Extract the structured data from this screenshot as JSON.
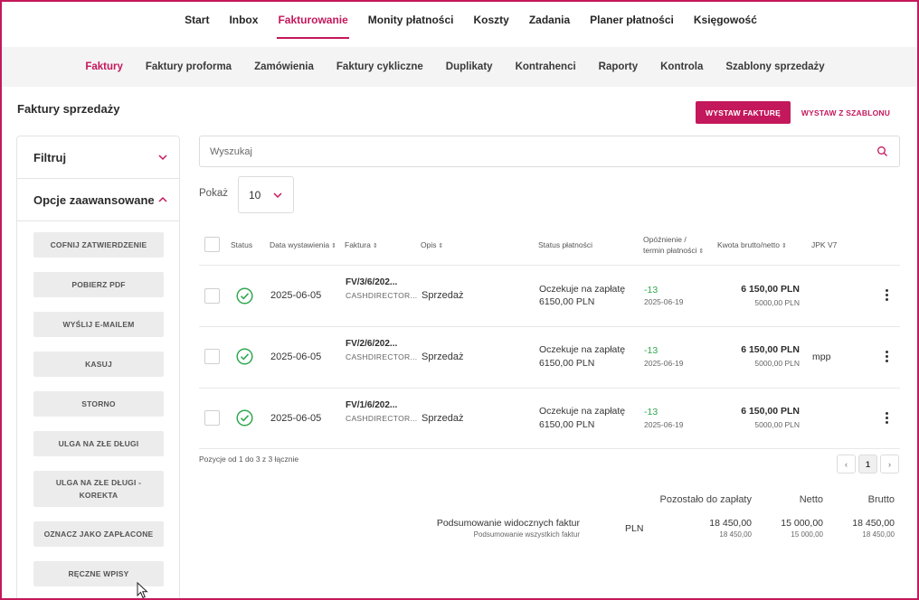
{
  "top_nav": {
    "items": [
      "Start",
      "Inbox",
      "Fakturowanie",
      "Monity płatności",
      "Koszty",
      "Zadania",
      "Planer płatności",
      "Księgowość"
    ],
    "active_index": 2
  },
  "sub_nav": {
    "items": [
      "Faktury",
      "Faktury proforma",
      "Zamówienia",
      "Faktury cykliczne",
      "Duplikaty",
      "Kontrahenci",
      "Raporty",
      "Kontrola",
      "Szablony sprzedaży"
    ],
    "active_index": 0
  },
  "page": {
    "title": "Faktury sprzedaży",
    "primary_button": "WYSTAW FAKTURĘ",
    "secondary_button": "WYSTAW Z SZABLONU"
  },
  "sidebar": {
    "filter_label": "Filtruj",
    "advanced_label": "Opcje zaawansowane",
    "actions": [
      "COFNIJ ZATWIERDZENIE",
      "POBIERZ PDF",
      "WYŚLIJ E-MAILEM",
      "KASUJ",
      "STORNO",
      "ULGA NA ZŁE DŁUGI",
      "ULGA NA ZŁE DŁUGI - KOREKTA",
      "OZNACZ JAKO ZAPŁACONE",
      "RĘCZNE WPISY"
    ]
  },
  "search": {
    "placeholder": "Wyszukaj"
  },
  "page_size": {
    "label": "Pokaż",
    "value": "10"
  },
  "table": {
    "headers": {
      "status": "Status",
      "date": "Data wystawienia",
      "invoice": "Faktura",
      "desc": "Opis",
      "payment_status": "Status płatności",
      "delay_line1": "Opóźnienie /",
      "delay_line2": "termin płatności",
      "amount": "Kwota brutto/netto",
      "jpk": "JPK V7"
    },
    "rows": [
      {
        "date": "2025-06-05",
        "invoice": "FV/3/6/202...",
        "invoice_sub": "CASHDIRECTOR...",
        "desc": "Sprzedaż",
        "status_line1": "Oczekuje na zapłatę",
        "status_line2": "6150,00 PLN",
        "delay": "-13",
        "due": "2025-06-19",
        "gross": "6 150,00 PLN",
        "net": "5000,00 PLN",
        "jpk": ""
      },
      {
        "date": "2025-06-05",
        "invoice": "FV/2/6/202...",
        "invoice_sub": "CASHDIRECTOR...",
        "desc": "Sprzedaż",
        "status_line1": "Oczekuje na zapłatę",
        "status_line2": "6150,00 PLN",
        "delay": "-13",
        "due": "2025-06-19",
        "gross": "6 150,00 PLN",
        "net": "5000,00 PLN",
        "jpk": "mpp"
      },
      {
        "date": "2025-06-05",
        "invoice": "FV/1/6/202...",
        "invoice_sub": "CASHDIRECTOR...",
        "desc": "Sprzedaż",
        "status_line1": "Oczekuje na zapłatę",
        "status_line2": "6150,00 PLN",
        "delay": "-13",
        "due": "2025-06-19",
        "gross": "6 150,00 PLN",
        "net": "5000,00 PLN",
        "jpk": ""
      }
    ]
  },
  "pagination": {
    "info": "Pozycje od 1 do 3 z 3 łącznie",
    "prev": "‹",
    "current": "1",
    "next": "›"
  },
  "summary": {
    "col_remaining": "Pozostało do zapłaty",
    "col_net": "Netto",
    "col_gross": "Brutto",
    "visible_label": "Podsumowanie widocznych faktur",
    "all_label": "Podsumowanie wszystkich faktur",
    "currency": "PLN",
    "visible_remaining": "18 450,00",
    "visible_net": "15 000,00",
    "visible_gross": "18 450,00",
    "all_remaining": "18 450,00",
    "all_net": "15 000,00",
    "all_gross": "18 450,00"
  },
  "colors": {
    "accent": "#c4185c",
    "success": "#2fa84f",
    "subnav_bg": "#f4f4f4"
  },
  "icons": [
    "search-icon",
    "chevron-down-icon",
    "chevron-up-icon",
    "check-circle-icon",
    "kebab-menu-icon",
    "mouse-pointer-icon"
  ]
}
